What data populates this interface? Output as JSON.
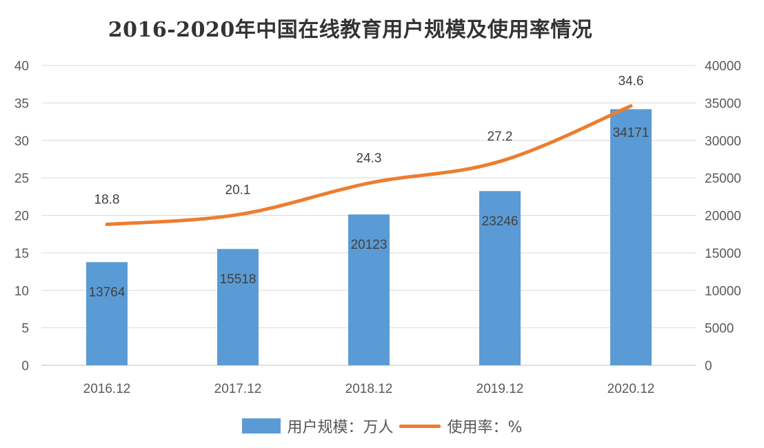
{
  "chart_data": {
    "type": "bar+line",
    "title": "2016-2020年中国在线教育用户规模及使用率情况",
    "categories": [
      "2016.12",
      "2017.12",
      "2018.12",
      "2019.12",
      "2020.12"
    ],
    "series": [
      {
        "name": "用户规模：万人",
        "type": "bar",
        "axis": "right",
        "values": [
          13764,
          15518,
          20123,
          23246,
          34171
        ],
        "color": "#5b9bd5"
      },
      {
        "name": "使用率：%",
        "type": "line",
        "axis": "left",
        "values": [
          18.8,
          20.1,
          24.3,
          27.2,
          34.6
        ],
        "color": "#ed7d31"
      }
    ],
    "y_left": {
      "min": 0,
      "max": 40,
      "ticks": [
        "0",
        "5",
        "10",
        "15",
        "20",
        "25",
        "30",
        "35",
        "40"
      ]
    },
    "y_right": {
      "min": 0,
      "max": 40000,
      "ticks": [
        "0",
        "5000",
        "10000",
        "15000",
        "20000",
        "25000",
        "30000",
        "35000",
        "40000"
      ]
    },
    "grid": true,
    "legend_position": "bottom"
  }
}
